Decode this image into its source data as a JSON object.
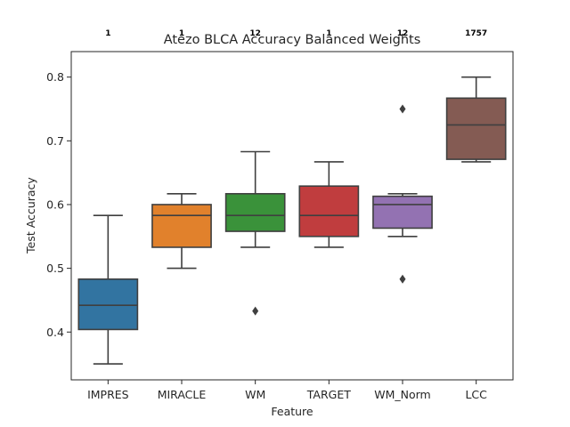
{
  "chart_data": {
    "type": "box",
    "title": "Atezo BLCA Accuracy Balanced Weights",
    "xlabel": "Feature",
    "ylabel": "Test Accuracy",
    "ylim": [
      0.325,
      0.84
    ],
    "yticks": [
      "0.4",
      "0.5",
      "0.6",
      "0.7",
      "0.8"
    ],
    "grid": false,
    "categories": [
      "IMPRES",
      "MIRACLE",
      "WM",
      "TARGET",
      "WM_Norm",
      "LCC"
    ],
    "counts": [
      "1",
      "1",
      "12",
      "1",
      "12",
      "1757"
    ],
    "colors": [
      "#3274a1",
      "#e1812c",
      "#3a923a",
      "#c03d3e",
      "#9372b2",
      "#845b53"
    ],
    "boxes": [
      {
        "whisker_low": 0.35,
        "q1": 0.404,
        "median": 0.442,
        "q3": 0.483,
        "whisker_high": 0.583,
        "outliers": []
      },
      {
        "whisker_low": 0.5,
        "q1": 0.533,
        "median": 0.583,
        "q3": 0.6,
        "whisker_high": 0.617,
        "outliers": []
      },
      {
        "whisker_low": 0.533,
        "q1": 0.558,
        "median": 0.583,
        "q3": 0.617,
        "whisker_high": 0.683,
        "outliers": [
          0.433
        ]
      },
      {
        "whisker_low": 0.533,
        "q1": 0.55,
        "median": 0.583,
        "q3": 0.629,
        "whisker_high": 0.667,
        "outliers": []
      },
      {
        "whisker_low": 0.55,
        "q1": 0.563,
        "median": 0.6,
        "q3": 0.613,
        "whisker_high": 0.617,
        "outliers": [
          0.75,
          0.483
        ]
      },
      {
        "whisker_low": 0.667,
        "q1": 0.671,
        "median": 0.725,
        "q3": 0.767,
        "whisker_high": 0.8,
        "outliers": []
      }
    ]
  }
}
